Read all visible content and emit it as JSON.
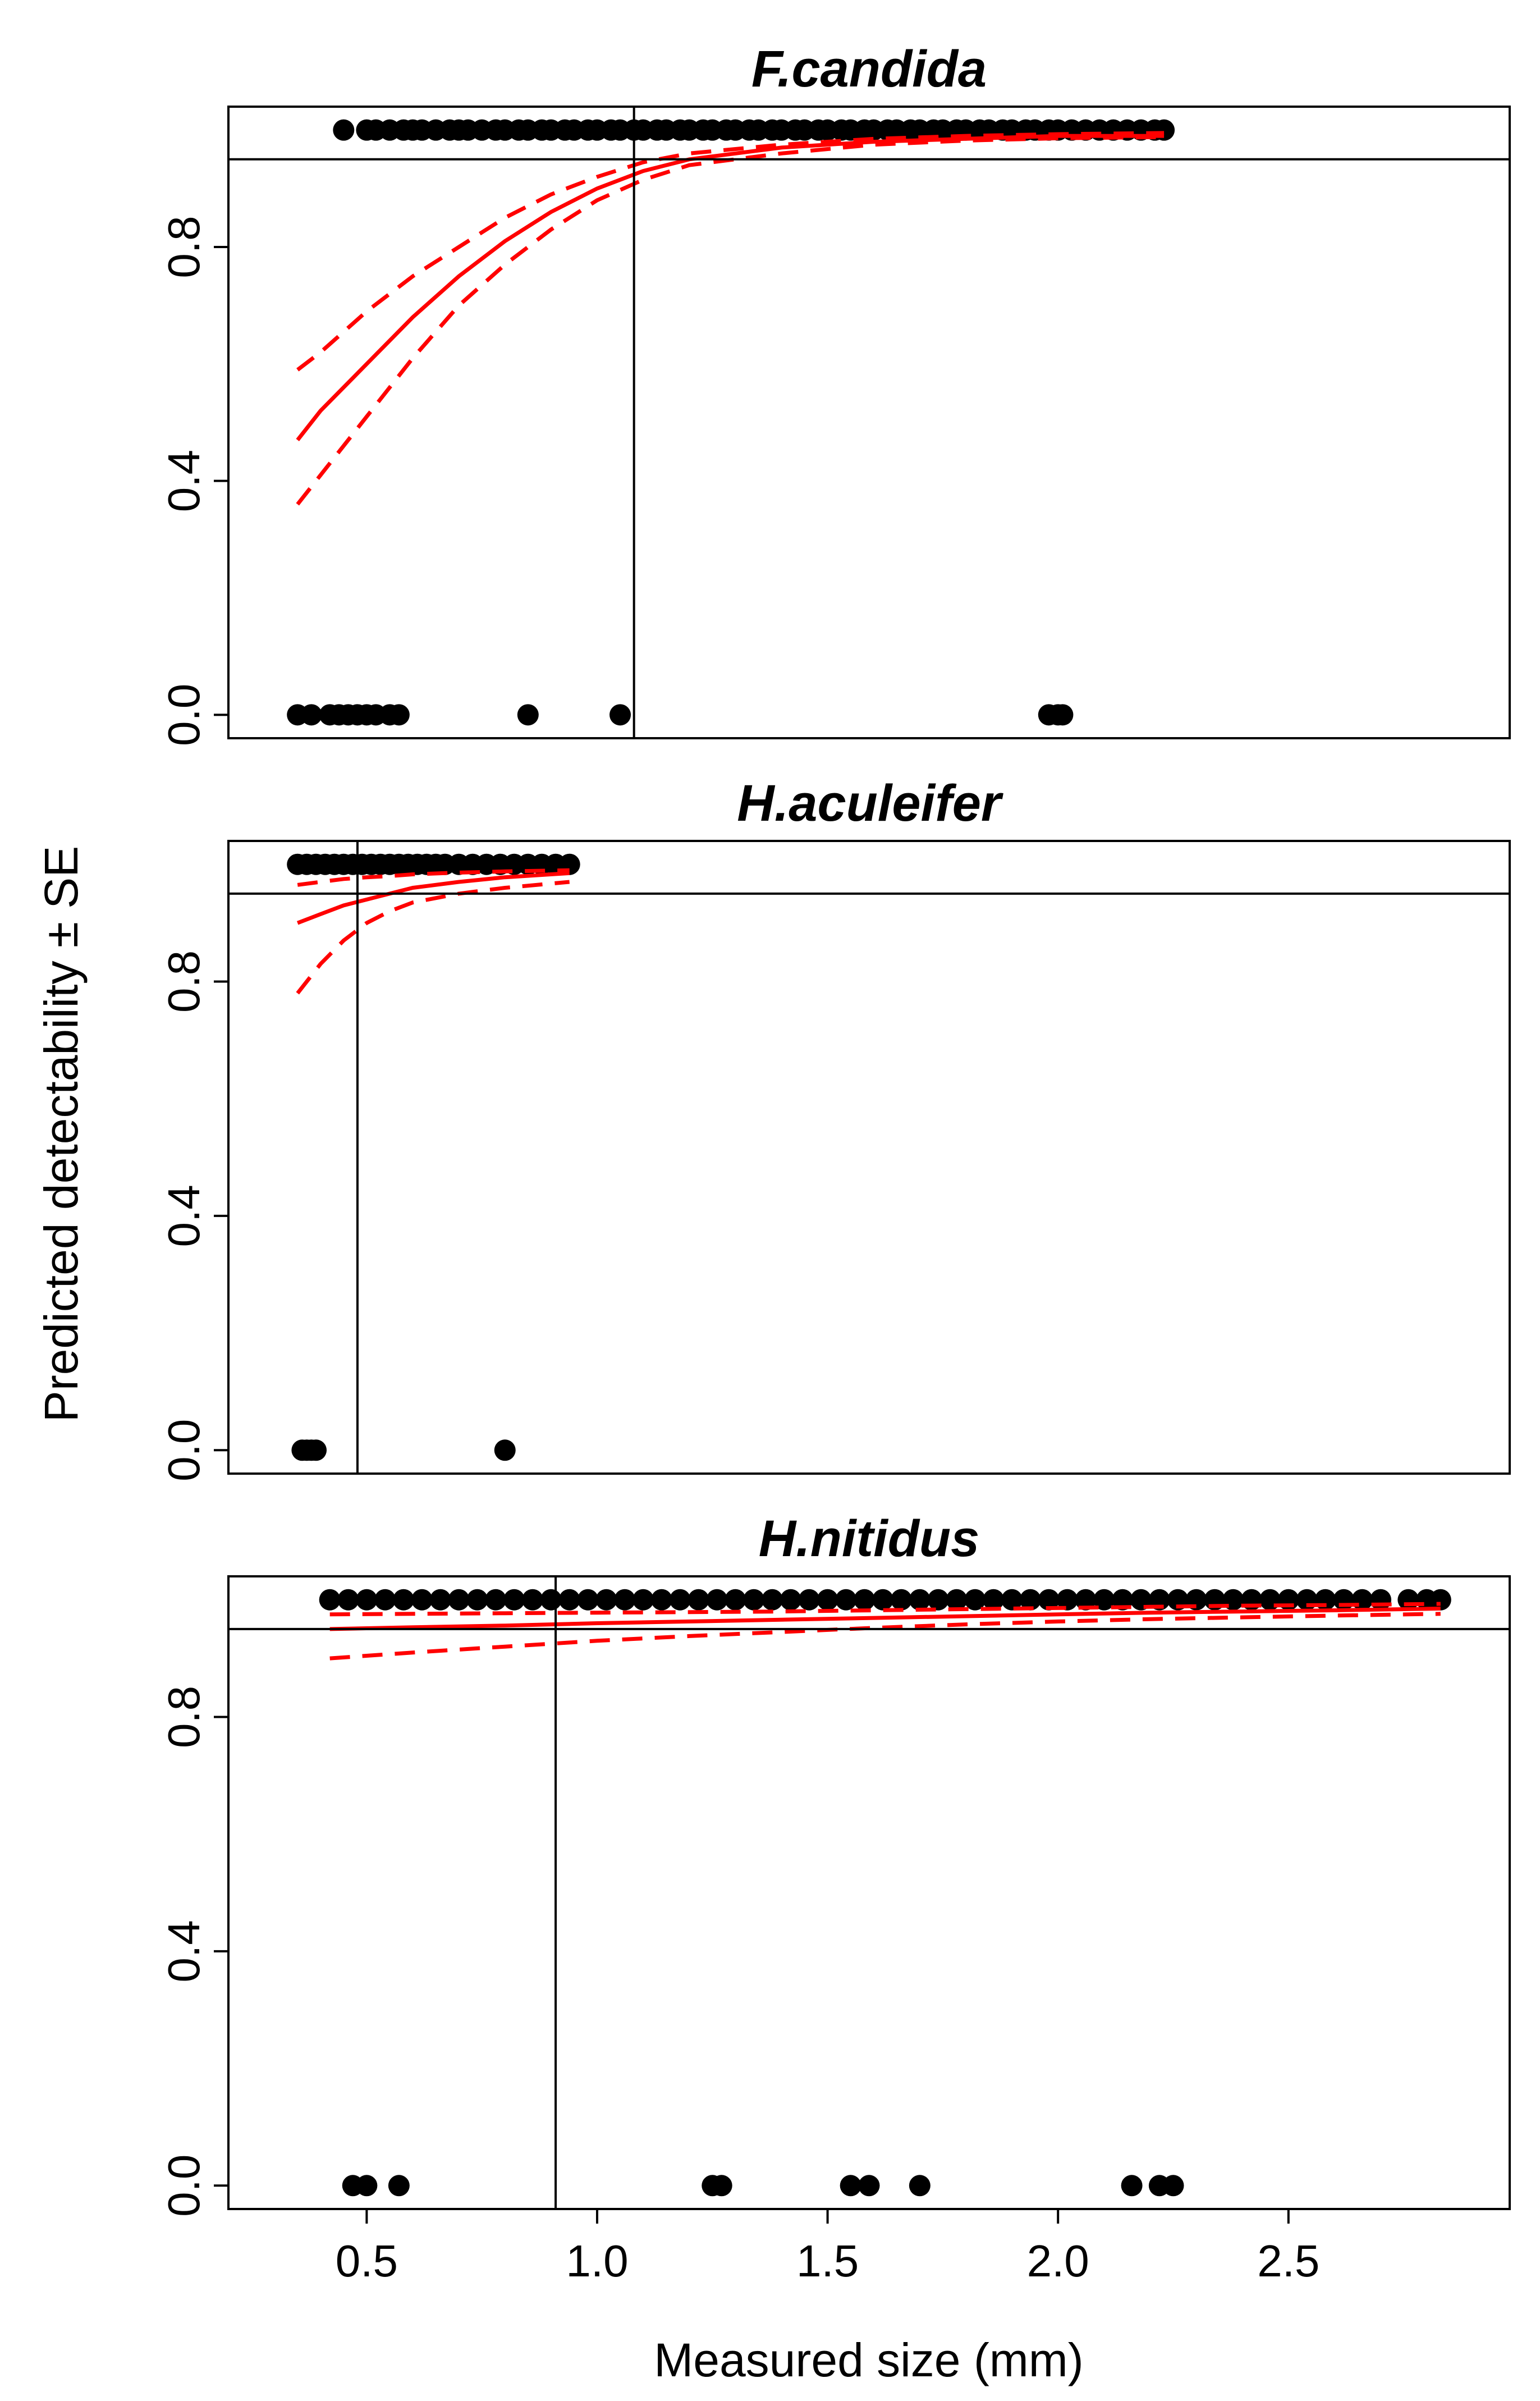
{
  "colors": {
    "points": "#000000",
    "fit": "#ff0000",
    "se": "#ff0000",
    "reference_lines": "#000000"
  },
  "chart_data": [
    {
      "type": "scatter",
      "title": "F.candida",
      "xlim": [
        0.2,
        2.98
      ],
      "ylim": [
        -0.04,
        1.04
      ],
      "yticks": [
        {
          "value": 0.0,
          "label": "0.0"
        },
        {
          "value": 0.4,
          "label": "0.4"
        },
        {
          "value": 0.8,
          "label": "0.8"
        }
      ],
      "hline": 0.95,
      "vline": 1.08,
      "points_detected": [
        0.45,
        0.5,
        0.52,
        0.55,
        0.58,
        0.6,
        0.62,
        0.65,
        0.68,
        0.7,
        0.72,
        0.75,
        0.78,
        0.8,
        0.83,
        0.85,
        0.88,
        0.9,
        0.93,
        0.95,
        0.98,
        1.0,
        1.03,
        1.05,
        1.08,
        1.1,
        1.13,
        1.15,
        1.18,
        1.2,
        1.23,
        1.25,
        1.28,
        1.3,
        1.33,
        1.35,
        1.38,
        1.4,
        1.43,
        1.45,
        1.48,
        1.5,
        1.53,
        1.55,
        1.58,
        1.6,
        1.63,
        1.65,
        1.68,
        1.7,
        1.73,
        1.75,
        1.78,
        1.8,
        1.83,
        1.85,
        1.88,
        1.9,
        1.93,
        1.95,
        1.98,
        2.0,
        2.03,
        2.06,
        2.09,
        2.12,
        2.15,
        2.18,
        2.21,
        2.23
      ],
      "points_missed": [
        0.35,
        0.38,
        0.42,
        0.44,
        0.46,
        0.48,
        0.5,
        0.52,
        0.55,
        0.57,
        0.85,
        1.05,
        1.98,
        2.0,
        2.01
      ],
      "fit_line": {
        "x": [
          0.35,
          0.4,
          0.5,
          0.6,
          0.7,
          0.8,
          0.9,
          1.0,
          1.1,
          1.2,
          1.4,
          1.6,
          1.8,
          2.0,
          2.23
        ],
        "fit": [
          0.47,
          0.52,
          0.6,
          0.68,
          0.75,
          0.81,
          0.86,
          0.9,
          0.93,
          0.95,
          0.97,
          0.98,
          0.985,
          0.99,
          0.99
        ],
        "upper": [
          0.59,
          0.62,
          0.69,
          0.75,
          0.8,
          0.85,
          0.89,
          0.92,
          0.945,
          0.96,
          0.975,
          0.985,
          0.99,
          0.993,
          0.995
        ],
        "lower": [
          0.36,
          0.41,
          0.51,
          0.61,
          0.7,
          0.77,
          0.83,
          0.88,
          0.915,
          0.94,
          0.96,
          0.975,
          0.982,
          0.986,
          0.988
        ]
      }
    },
    {
      "type": "scatter",
      "title": "H.aculeifer",
      "xlim": [
        0.2,
        2.98
      ],
      "ylim": [
        -0.04,
        1.04
      ],
      "yticks": [
        {
          "value": 0.0,
          "label": "0.0"
        },
        {
          "value": 0.4,
          "label": "0.4"
        },
        {
          "value": 0.8,
          "label": "0.8"
        }
      ],
      "hline": 0.95,
      "vline": 0.48,
      "points_detected": [
        0.35,
        0.37,
        0.39,
        0.41,
        0.43,
        0.45,
        0.47,
        0.49,
        0.51,
        0.53,
        0.55,
        0.57,
        0.59,
        0.61,
        0.63,
        0.65,
        0.67,
        0.7,
        0.73,
        0.76,
        0.79,
        0.82,
        0.85,
        0.88,
        0.91,
        0.94
      ],
      "points_missed": [
        0.36,
        0.37,
        0.38,
        0.39,
        0.8
      ],
      "fit_line": {
        "x": [
          0.35,
          0.4,
          0.45,
          0.5,
          0.55,
          0.6,
          0.7,
          0.8,
          0.94
        ],
        "fit": [
          0.9,
          0.915,
          0.93,
          0.94,
          0.95,
          0.96,
          0.97,
          0.978,
          0.985
        ],
        "upper": [
          0.965,
          0.97,
          0.975,
          0.978,
          0.98,
          0.983,
          0.986,
          0.988,
          0.99
        ],
        "lower": [
          0.78,
          0.83,
          0.87,
          0.9,
          0.92,
          0.935,
          0.95,
          0.96,
          0.97
        ]
      }
    },
    {
      "type": "scatter",
      "title": "H.nitidus",
      "xlim": [
        0.2,
        2.98
      ],
      "ylim": [
        -0.04,
        1.04
      ],
      "xticks": [
        {
          "value": 0.5,
          "label": "0.5"
        },
        {
          "value": 1.0,
          "label": "1.0"
        },
        {
          "value": 1.5,
          "label": "1.5"
        },
        {
          "value": 2.0,
          "label": "2.0"
        },
        {
          "value": 2.5,
          "label": "2.5"
        }
      ],
      "yticks": [
        {
          "value": 0.0,
          "label": "0.0"
        },
        {
          "value": 0.4,
          "label": "0.4"
        },
        {
          "value": 0.8,
          "label": "0.8"
        }
      ],
      "hline": 0.95,
      "vline": 0.91,
      "points_detected": [
        0.42,
        0.46,
        0.5,
        0.54,
        0.58,
        0.62,
        0.66,
        0.7,
        0.74,
        0.78,
        0.82,
        0.86,
        0.9,
        0.94,
        0.98,
        1.02,
        1.06,
        1.1,
        1.14,
        1.18,
        1.22,
        1.26,
        1.3,
        1.34,
        1.38,
        1.42,
        1.46,
        1.5,
        1.54,
        1.58,
        1.62,
        1.66,
        1.7,
        1.74,
        1.78,
        1.82,
        1.86,
        1.9,
        1.94,
        1.98,
        2.02,
        2.06,
        2.1,
        2.14,
        2.18,
        2.22,
        2.26,
        2.3,
        2.34,
        2.38,
        2.42,
        2.46,
        2.5,
        2.54,
        2.58,
        2.62,
        2.66,
        2.7,
        2.76,
        2.8,
        2.83
      ],
      "points_missed": [
        0.47,
        0.5,
        0.57,
        1.25,
        1.27,
        1.55,
        1.59,
        1.7,
        2.16,
        2.22,
        2.25
      ],
      "fit_line": {
        "x": [
          0.42,
          0.6,
          0.8,
          1.0,
          1.2,
          1.4,
          1.6,
          1.8,
          2.0,
          2.2,
          2.4,
          2.6,
          2.83
        ],
        "fit": [
          0.95,
          0.953,
          0.956,
          0.96,
          0.963,
          0.966,
          0.969,
          0.972,
          0.975,
          0.978,
          0.98,
          0.982,
          0.985
        ],
        "upper": [
          0.975,
          0.976,
          0.977,
          0.978,
          0.979,
          0.98,
          0.982,
          0.984,
          0.986,
          0.988,
          0.99,
          0.991,
          0.993
        ],
        "lower": [
          0.9,
          0.91,
          0.92,
          0.93,
          0.938,
          0.945,
          0.952,
          0.958,
          0.963,
          0.967,
          0.97,
          0.973,
          0.976
        ]
      }
    }
  ],
  "shared_axes": {
    "xlabel": "Measured size (mm)",
    "ylabel": "Predicted detectability ± SE"
  }
}
